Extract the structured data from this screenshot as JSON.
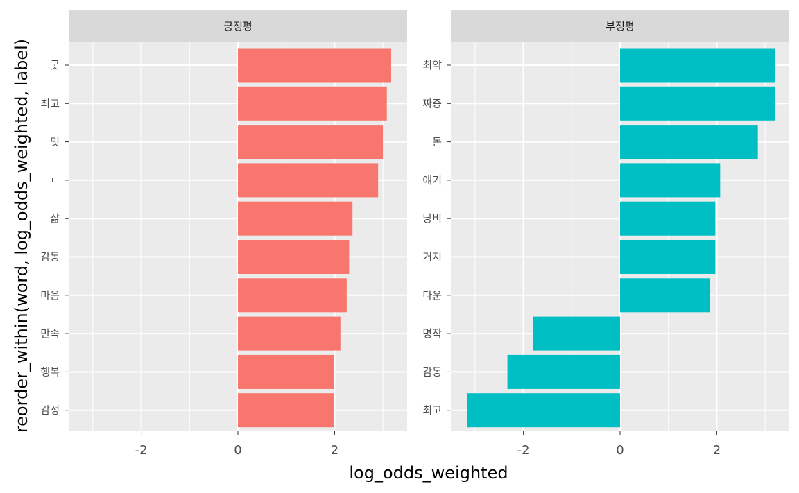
{
  "chart_data": {
    "type": "bar",
    "orientation": "horizontal",
    "xlabel": "log_odds_weighted",
    "ylabel": "reorder_within(word, log_odds_weighted, label)",
    "xlim": [
      -3.5,
      3.5
    ],
    "x_ticks": [
      -2,
      0,
      2
    ],
    "x_tick_labels": [
      "-2",
      "0",
      "2"
    ],
    "grid": true,
    "legend": "none",
    "panel_background": "#ebebeb",
    "strip_background": "#d9d9d9",
    "grid_color": "#ffffff",
    "facets": [
      {
        "label": "긍정평",
        "color": "#F8766D",
        "categories": [
          "굿",
          "최고",
          "밋",
          "ㄷ",
          "삶",
          "감동",
          "마음",
          "만족",
          "행복",
          "감정"
        ],
        "values": [
          3.17,
          3.08,
          3.0,
          2.9,
          2.37,
          2.3,
          2.25,
          2.12,
          1.98,
          1.98
        ]
      },
      {
        "label": "부정평",
        "color": "#00BFC4",
        "categories": [
          "최악",
          "짜증",
          "돈",
          "얘기",
          "낭비",
          "거지",
          "다운",
          "명작",
          "감동",
          "최고"
        ],
        "values": [
          3.2,
          3.2,
          2.85,
          2.07,
          1.97,
          1.97,
          1.86,
          -1.8,
          -2.33,
          -3.17
        ]
      }
    ]
  }
}
